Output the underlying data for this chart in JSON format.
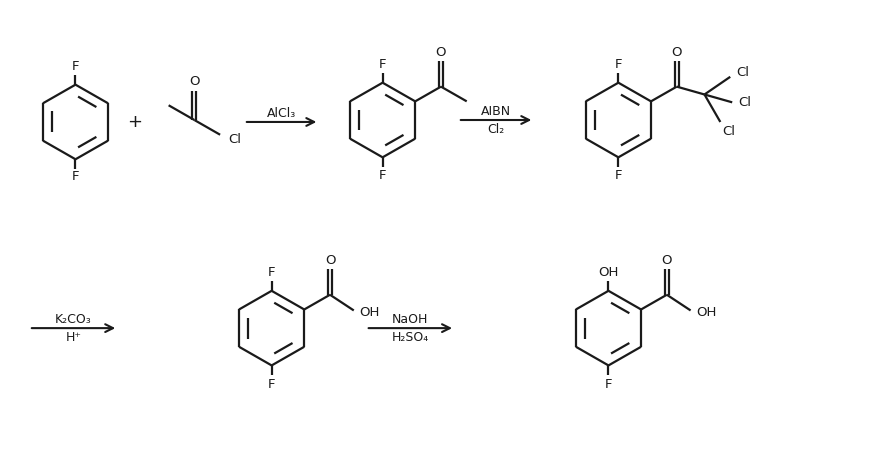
{
  "background_color": "#ffffff",
  "line_color": "#1a1a1a",
  "line_width": 1.6,
  "fig_width": 8.93,
  "fig_height": 4.55,
  "dpi": 100,
  "arrow_lw": 1.5,
  "font_size": 9.5,
  "reactions": [
    {
      "top": "AlCl₃",
      "bottom": ""
    },
    {
      "top": "AIBN",
      "bottom": "Cl₂"
    },
    {
      "top": "K₂CO₃",
      "bottom": "H⁺"
    },
    {
      "top": "NaOH",
      "bottom": "H₂SO₄"
    }
  ]
}
